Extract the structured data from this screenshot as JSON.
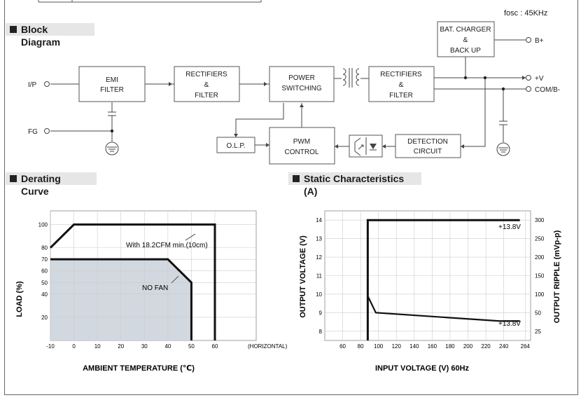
{
  "fosc": "fosc : 45KHz",
  "sections": {
    "block_diagram": "Block Diagram",
    "derating_curve": "Derating Curve",
    "static_characteristics": "Static Characteristics (A)"
  },
  "block_diagram": {
    "inputs": {
      "ip": "I/P",
      "fg": "FG"
    },
    "outputs": {
      "b_plus": "B+",
      "v_plus": "+V",
      "com": "COM/B-"
    },
    "blocks": {
      "emi": [
        "EMI",
        "FILTER"
      ],
      "rect1": [
        "RECTIFIERS",
        "&",
        "FILTER"
      ],
      "power": [
        "POWER",
        "SWITCHING"
      ],
      "rect2": [
        "RECTIFIERS",
        "&",
        "FILTER"
      ],
      "charger": [
        "BAT. CHARGER",
        "&",
        "BACK UP"
      ],
      "olp": [
        "O.L.P."
      ],
      "pwm": [
        "PWM",
        "CONTROL"
      ],
      "detection": [
        "DETECTION",
        "CIRCUIT"
      ]
    }
  },
  "chart_data": [
    {
      "type": "line",
      "title": "Derating Curve",
      "xlabel": "AMBIENT TEMPERATURE (℃)",
      "ylabel": "LOAD (%)",
      "x_ticks": [
        -10,
        0,
        10,
        20,
        30,
        40,
        50,
        60
      ],
      "x_suffix": "(HORIZONTAL)",
      "y_ticks": [
        20,
        40,
        50,
        60,
        70,
        80,
        100
      ],
      "xlim": [
        -10,
        60
      ],
      "ylim": [
        0,
        110
      ],
      "series": [
        {
          "name": "With 18.2CFM min.(10cm)",
          "points": [
            [
              -10,
              80
            ],
            [
              0,
              100
            ],
            [
              60,
              100
            ],
            [
              60,
              0
            ]
          ]
        },
        {
          "name": "NO FAN",
          "points": [
            [
              -10,
              70
            ],
            [
              40,
              70
            ],
            [
              50,
              50
            ],
            [
              50,
              0
            ]
          ]
        }
      ]
    },
    {
      "type": "line",
      "title": "Static Characteristics (A)",
      "xlabel": "INPUT VOLTAGE (V) 60Hz",
      "ylabel": "OUTPUT VOLTAGE (V)",
      "y2label": "OUTPUT RIPPLE (mVp-p)",
      "x_ticks": [
        60,
        80,
        100,
        120,
        140,
        160,
        180,
        200,
        220,
        240,
        264
      ],
      "y_ticks": [
        8,
        9,
        10,
        11,
        12,
        13,
        14
      ],
      "y2_ticks": [
        25,
        50,
        100,
        150,
        200,
        250,
        300
      ],
      "xlim": [
        40,
        270
      ],
      "ylim": [
        7.5,
        14.5
      ],
      "series": [
        {
          "name": "+13.8V",
          "points": [
            [
              88,
              7.5
            ],
            [
              88,
              14
            ],
            [
              270,
              14
            ]
          ]
        },
        {
          "name": "+13.8V",
          "points": [
            [
              88,
              9.9
            ],
            [
              97,
              9
            ],
            [
              235,
              8.55
            ],
            [
              270,
              8.55
            ]
          ]
        }
      ]
    }
  ]
}
